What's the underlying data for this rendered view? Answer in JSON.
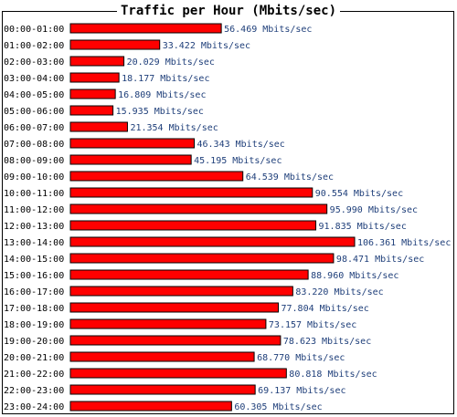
{
  "chart_data": {
    "type": "bar",
    "orientation": "horizontal",
    "title": "Traffic per Hour (Mbits/sec)",
    "unit": "Mbits/sec",
    "bar_color": "#ff0000",
    "categories": [
      "00:00-01:00",
      "01:00-02:00",
      "02:00-03:00",
      "03:00-04:00",
      "04:00-05:00",
      "05:00-06:00",
      "06:00-07:00",
      "07:00-08:00",
      "08:00-09:00",
      "09:00-10:00",
      "10:00-11:00",
      "11:00-12:00",
      "12:00-13:00",
      "13:00-14:00",
      "14:00-15:00",
      "15:00-16:00",
      "16:00-17:00",
      "17:00-18:00",
      "18:00-19:00",
      "19:00-20:00",
      "20:00-21:00",
      "21:00-22:00",
      "22:00-23:00",
      "23:00-24:00"
    ],
    "values": [
      56.469,
      33.422,
      20.029,
      18.177,
      16.809,
      15.935,
      21.354,
      46.343,
      45.195,
      64.539,
      90.554,
      95.99,
      91.835,
      106.361,
      98.471,
      88.96,
      83.22,
      77.804,
      73.157,
      78.623,
      68.77,
      80.818,
      69.137,
      60.305
    ],
    "value_labels": [
      "56.469 Mbits/sec",
      "33.422 Mbits/sec",
      "20.029 Mbits/sec",
      "18.177 Mbits/sec",
      "16.809 Mbits/sec",
      "15.935 Mbits/sec",
      "21.354 Mbits/sec",
      "46.343 Mbits/sec",
      "45.195 Mbits/sec",
      "64.539 Mbits/sec",
      "90.554 Mbits/sec",
      "95.990 Mbits/sec",
      "91.835 Mbits/sec",
      "106.361 Mbits/sec",
      "98.471 Mbits/sec",
      "88.960 Mbits/sec",
      "83.220 Mbits/sec",
      "77.804 Mbits/sec",
      "73.157 Mbits/sec",
      "78.623 Mbits/sec",
      "68.770 Mbits/sec",
      "80.818 Mbits/sec",
      "69.137 Mbits/sec",
      "60.305 Mbits/sec"
    ],
    "xlim": [
      0,
      106.361
    ],
    "grid": false,
    "legend": "none"
  }
}
